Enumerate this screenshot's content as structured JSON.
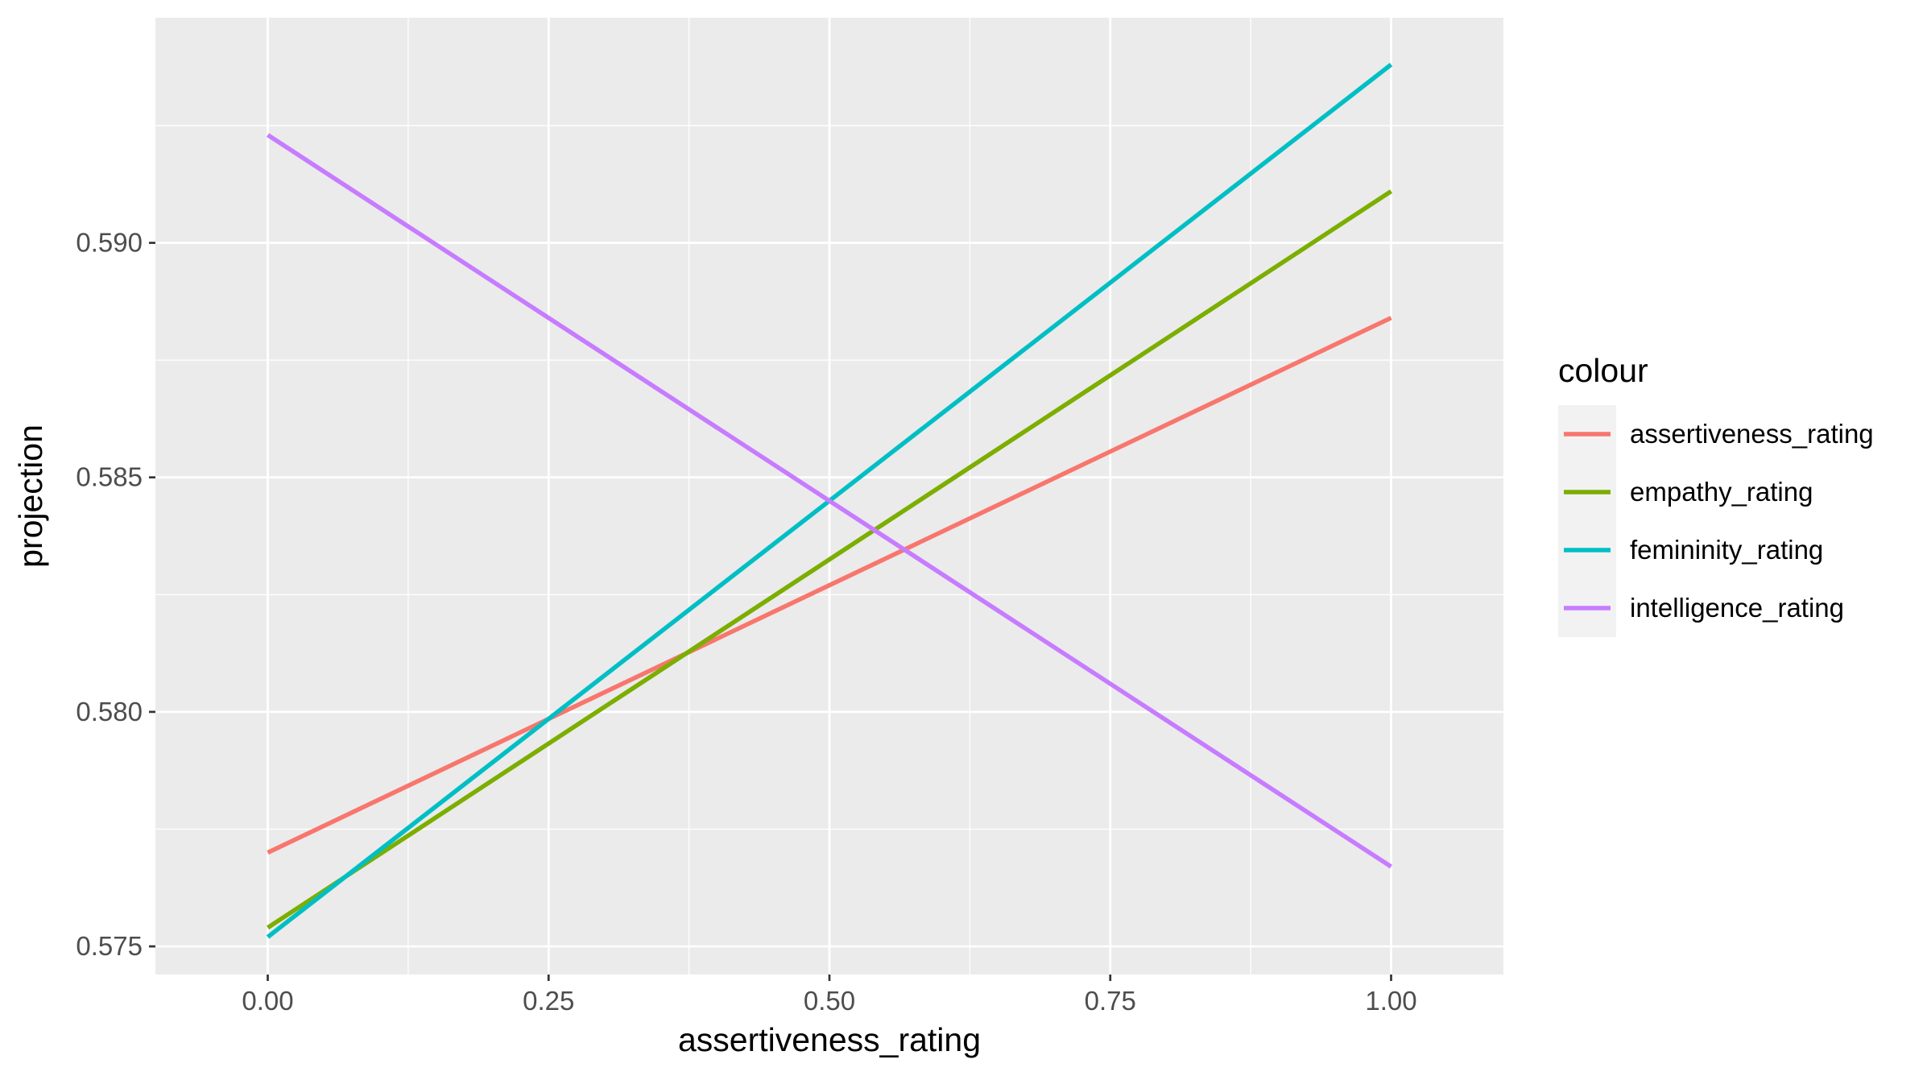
{
  "chart_data": {
    "type": "line",
    "xlabel": "assertiveness_rating",
    "ylabel": "projection",
    "xlim": [
      -0.1,
      1.1
    ],
    "ylim": [
      0.5744,
      0.5948
    ],
    "x_ticks": [
      0.0,
      0.25,
      0.5,
      0.75,
      1.0
    ],
    "x_tick_labels": [
      "0.00",
      "0.25",
      "0.50",
      "0.75",
      "1.00"
    ],
    "x_minor_ticks": [
      0.125,
      0.375,
      0.625,
      0.875
    ],
    "y_ticks": [
      0.575,
      0.58,
      0.585,
      0.59
    ],
    "y_tick_labels": [
      "0.575",
      "0.580",
      "0.585",
      "0.590"
    ],
    "y_minor_ticks": [
      0.5775,
      0.5825,
      0.5875,
      0.5925
    ],
    "grid": true,
    "panel_background": "#ebebeb",
    "grid_color": "#ffffff",
    "legend": {
      "title": "colour",
      "position": "right"
    },
    "series": [
      {
        "name": "assertiveness_rating",
        "color": "#F8766D",
        "x": [
          0,
          1
        ],
        "y": [
          0.577,
          0.5884
        ]
      },
      {
        "name": "empathy_rating",
        "color": "#7CAE00",
        "x": [
          0,
          1
        ],
        "y": [
          0.5754,
          0.5911
        ]
      },
      {
        "name": "femininity_rating",
        "color": "#00BFC4",
        "x": [
          0,
          1
        ],
        "y": [
          0.5752,
          0.5938
        ]
      },
      {
        "name": "intelligence_rating",
        "color": "#C77CFF",
        "x": [
          0,
          1
        ],
        "y": [
          0.5923,
          0.5767
        ]
      }
    ]
  }
}
